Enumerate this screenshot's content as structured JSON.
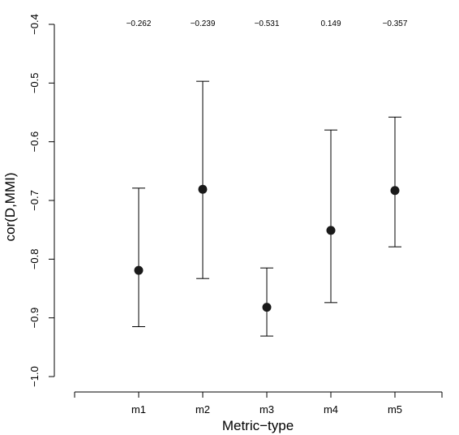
{
  "chart_data": {
    "type": "scatter",
    "title": "",
    "xlabel": "Metric−type",
    "ylabel": "cor(D,MMI)",
    "categories": [
      "m1",
      "m2",
      "m3",
      "m4",
      "m5"
    ],
    "y_ticks": [
      "−1.0",
      "−0.9",
      "−0.8",
      "−0.7",
      "−0.6",
      "−0.5",
      "−0.4"
    ],
    "y_tick_values": [
      -1.0,
      -0.9,
      -0.8,
      -0.7,
      -0.6,
      -0.5,
      -0.4
    ],
    "ylim": [
      -1.0,
      -0.4
    ],
    "grid": false,
    "series": [
      {
        "values": [
          -0.819,
          -0.681,
          -0.882,
          -0.751,
          -0.683
        ],
        "lower": [
          -0.915,
          -0.833,
          -0.931,
          -0.874,
          -0.779
        ],
        "upper": [
          -0.679,
          -0.497,
          -0.815,
          -0.58,
          -0.558
        ]
      }
    ],
    "annotations": [
      "−0.262",
      "−0.239",
      "−0.531",
      "0.149",
      "−0.357"
    ]
  }
}
